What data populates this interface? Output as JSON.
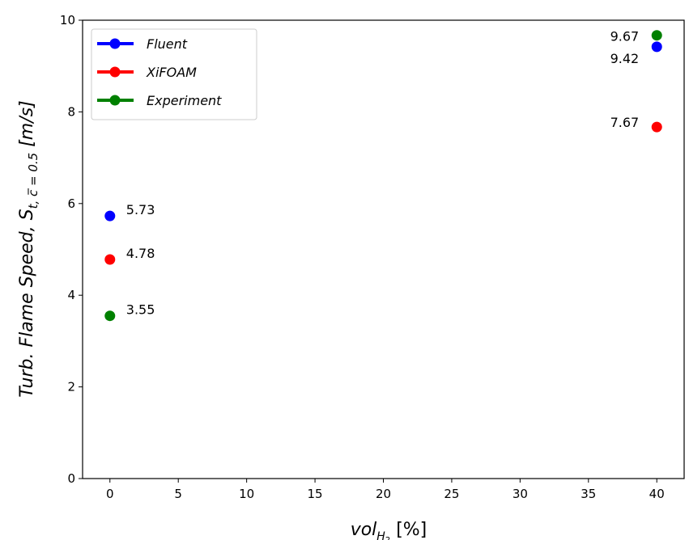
{
  "chart_data": {
    "type": "scatter",
    "xlim": [
      -2,
      42
    ],
    "ylim": [
      0,
      10
    ],
    "x_ticks": [
      0,
      5,
      10,
      15,
      20,
      25,
      30,
      35,
      40
    ],
    "y_ticks": [
      0,
      2,
      4,
      6,
      8,
      10
    ],
    "x_tick_labels": [
      "0",
      "5",
      "10",
      "15",
      "20",
      "25",
      "30",
      "35",
      "40"
    ],
    "y_tick_labels": [
      "0",
      "2",
      "4",
      "6",
      "8",
      "10"
    ],
    "xlabel": {
      "base": "vol",
      "sub": "H",
      "subsub": "2",
      "rest": " [%]"
    },
    "ylabel": {
      "text": "Turb. Flame Speed,  S",
      "sub": "t, c̅ = 0.5",
      "rest": " [m/s]"
    },
    "grid": false,
    "legend_position": "top-left",
    "series": [
      {
        "name": "Fluent",
        "color": "#0000ff",
        "points": [
          {
            "x": 0,
            "y": 5.73,
            "label": "5.73"
          },
          {
            "x": 40,
            "y": 9.42,
            "label": "9.42"
          }
        ]
      },
      {
        "name": "XiFOAM",
        "color": "#ff0000",
        "points": [
          {
            "x": 0,
            "y": 4.78,
            "label": "4.78"
          },
          {
            "x": 40,
            "y": 7.67,
            "label": "7.67"
          }
        ]
      },
      {
        "name": "Experiment",
        "color": "#008000",
        "points": [
          {
            "x": 0,
            "y": 3.55,
            "label": "3.55"
          },
          {
            "x": 40,
            "y": 9.67,
            "label": "9.67"
          }
        ]
      }
    ]
  }
}
